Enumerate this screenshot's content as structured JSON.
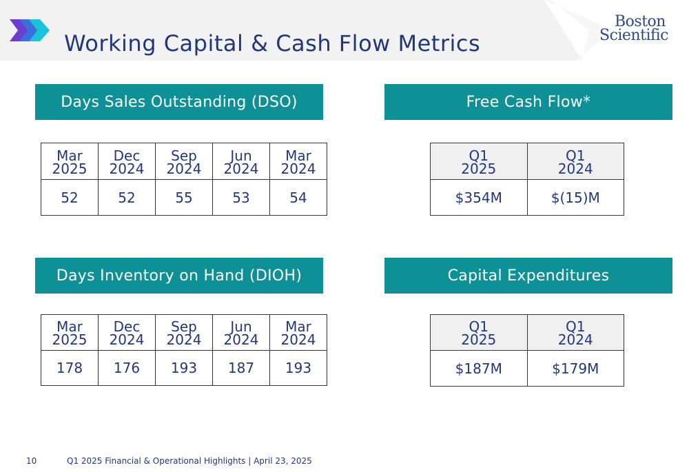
{
  "page_title": "Working Capital & Cash Flow Metrics",
  "logo": {
    "line1": "Boston",
    "line2": "Scientific"
  },
  "colors": {
    "section_header_bg": "#0e9196",
    "title_color": "#223779",
    "header_band": "#f2f2f2"
  },
  "sections": {
    "dso": {
      "title": "Days Sales Outstanding (DSO)",
      "columns": [
        {
          "month": "Mar",
          "year": "2025",
          "value": "52"
        },
        {
          "month": "Dec",
          "year": "2024",
          "value": "52"
        },
        {
          "month": "Sep",
          "year": "2024",
          "value": "55"
        },
        {
          "month": "Jun",
          "year": "2024",
          "value": "53"
        },
        {
          "month": "Mar",
          "year": "2024",
          "value": "54"
        }
      ]
    },
    "fcf": {
      "title": "Free Cash Flow*",
      "columns": [
        {
          "quarter": "Q1",
          "year": "2025",
          "value": "$354M"
        },
        {
          "quarter": "Q1",
          "year": "2024",
          "value": "$(15)M"
        }
      ]
    },
    "dioh": {
      "title": "Days Inventory on Hand (DIOH)",
      "columns": [
        {
          "month": "Mar",
          "year": "2025",
          "value": "178"
        },
        {
          "month": "Dec",
          "year": "2024",
          "value": "176"
        },
        {
          "month": "Sep",
          "year": "2024",
          "value": "193"
        },
        {
          "month": "Jun",
          "year": "2024",
          "value": "187"
        },
        {
          "month": "Mar",
          "year": "2024",
          "value": "193"
        }
      ]
    },
    "capex": {
      "title": "Capital Expenditures",
      "columns": [
        {
          "quarter": "Q1",
          "year": "2025",
          "value": "$187M"
        },
        {
          "quarter": "Q1",
          "year": "2024",
          "value": "$179M"
        }
      ]
    }
  },
  "footer": {
    "page_number": "10",
    "text": "Q1 2025 Financial & Operational Highlights | April 23, 2025"
  }
}
